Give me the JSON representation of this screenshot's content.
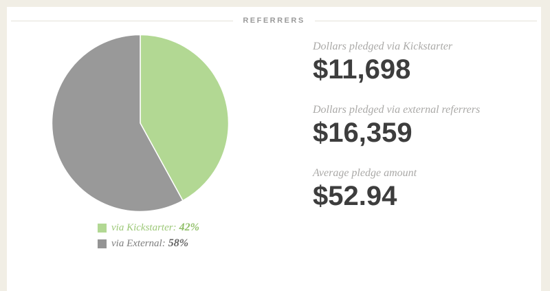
{
  "header": {
    "title": "REFERRERS"
  },
  "chart_data": {
    "type": "pie",
    "title": "Referrers",
    "labels": [
      "via Kickstarter",
      "via External"
    ],
    "values": [
      42,
      58
    ],
    "unit": "%",
    "colors": [
      "#b2d893",
      "#999999"
    ],
    "start_angle_deg": 0,
    "direction": "clockwise",
    "legend_position": "bottom-left",
    "slice_separator_color": "#ffffff"
  },
  "legend": {
    "items": [
      {
        "label": "via Kickstarter:",
        "percent": "42%",
        "swatch_color": "#b2d893"
      },
      {
        "label": "via External:",
        "percent": "58%",
        "swatch_color": "#949494"
      }
    ]
  },
  "stats": [
    {
      "label": "Dollars pledged via Kickstarter",
      "value": "$11,698"
    },
    {
      "label": "Dollars pledged via external referrers",
      "value": "$16,359"
    },
    {
      "label": "Average pledge amount",
      "value": "$52.94"
    }
  ]
}
